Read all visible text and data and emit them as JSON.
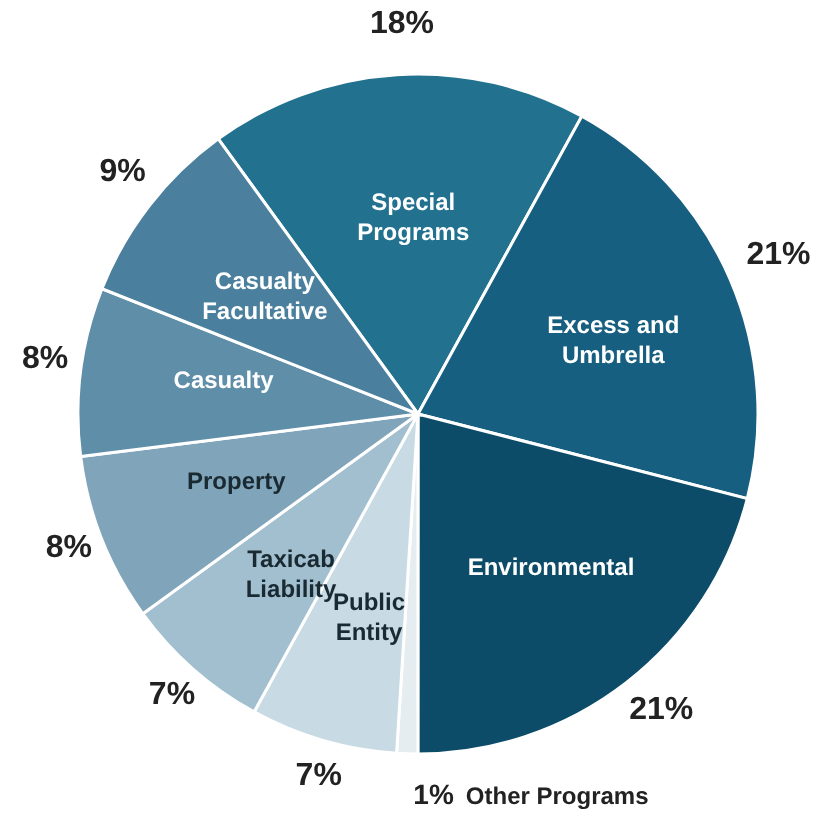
{
  "chart_data": {
    "type": "pie",
    "categories": [
      "Special Programs",
      "Excess and Umbrella",
      "Environmental",
      "Other Programs",
      "Public Entity",
      "Taxicab Liability",
      "Property",
      "Casualty",
      "Casualty Facultative"
    ],
    "values": [
      18,
      21,
      21,
      1,
      7,
      7,
      8,
      8,
      9
    ],
    "colors": [
      "#21718f",
      "#165f80",
      "#0c4c69",
      "#e6edf1",
      "#c8dae4",
      "#a2bfcf",
      "#80a4b9",
      "#5f8ea9",
      "#4a809e"
    ],
    "value_labels": [
      "18%",
      "21%",
      "21%",
      "1%",
      "7%",
      "7%",
      "8%",
      "8%",
      "9%"
    ]
  }
}
